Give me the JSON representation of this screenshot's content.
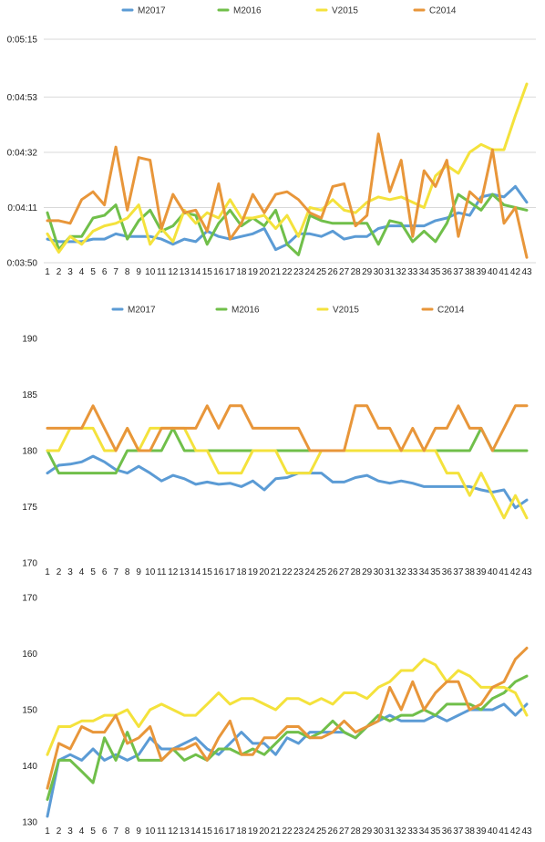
{
  "colors": {
    "M2017": "#5b9bd5",
    "M2016": "#70bf4a",
    "V2015": "#f4e23c",
    "C2014": "#e8963a",
    "grid": "#d9d9d9"
  },
  "chart_data": [
    {
      "type": "line",
      "title": "",
      "xlabel": "",
      "ylabel": "",
      "x": [
        1,
        2,
        3,
        4,
        5,
        6,
        7,
        8,
        9,
        10,
        11,
        12,
        13,
        14,
        15,
        16,
        17,
        18,
        19,
        20,
        21,
        22,
        23,
        24,
        25,
        26,
        27,
        28,
        29,
        30,
        31,
        32,
        33,
        34,
        35,
        36,
        37,
        38,
        39,
        40,
        41,
        42,
        43
      ],
      "y_ticks": [
        "0:03:50",
        "0:04:11",
        "0:04:32",
        "0:04:53",
        "0:05:15"
      ],
      "ylim": [
        "0:03:50",
        "0:05:15"
      ],
      "grid": true,
      "legend": "top",
      "series": [
        {
          "name": "M2017",
          "values": [
            "0:03:59",
            "0:03:58",
            "0:03:58",
            "0:03:58",
            "0:03:59",
            "0:03:59",
            "0:04:01",
            "0:04:00",
            "0:04:00",
            "0:04:00",
            "0:03:59",
            "0:03:57",
            "0:03:59",
            "0:03:58",
            "0:04:02",
            "0:04:00",
            "0:03:59",
            "0:04:00",
            "0:04:01",
            "0:04:03",
            "0:03:55",
            "0:03:57",
            "0:04:01",
            "0:04:01",
            "0:04:00",
            "0:04:02",
            "0:03:59",
            "0:04:00",
            "0:04:00",
            "0:04:03",
            "0:04:04",
            "0:04:04",
            "0:04:04",
            "0:04:04",
            "0:04:06",
            "0:04:07",
            "0:04:09",
            "0:04:08",
            "0:04:15",
            "0:04:16",
            "0:04:15",
            "0:04:19",
            "0:04:13"
          ]
        },
        {
          "name": "M2016",
          "values": [
            "0:04:09",
            "0:03:55",
            "0:04:00",
            "0:04:00",
            "0:04:07",
            "0:04:08",
            "0:04:12",
            "0:03:59",
            "0:04:06",
            "0:04:10",
            "0:04:02",
            "0:04:04",
            "0:04:09",
            "0:04:08",
            "0:03:57",
            "0:04:05",
            "0:04:10",
            "0:04:04",
            "0:04:07",
            "0:04:04",
            "0:04:10",
            "0:03:57",
            "0:03:53",
            "0:04:08",
            "0:04:06",
            "0:04:05",
            "0:04:05",
            "0:04:05",
            "0:04:05",
            "0:03:57",
            "0:04:06",
            "0:04:05",
            "0:03:58",
            "0:04:02",
            "0:03:58",
            "0:04:05",
            "0:04:16",
            "0:04:13",
            "0:04:10",
            "0:04:16",
            "0:04:12",
            "0:04:11",
            "0:04:10"
          ]
        },
        {
          "name": "V2015",
          "values": [
            "0:04:01",
            "0:03:54",
            "0:04:00",
            "0:03:57",
            "0:04:02",
            "0:04:04",
            "0:04:05",
            "0:04:07",
            "0:04:12",
            "0:03:57",
            "0:04:03",
            "0:03:58",
            "0:04:10",
            "0:04:05",
            "0:04:09",
            "0:04:07",
            "0:04:14",
            "0:04:07",
            "0:04:07",
            "0:04:08",
            "0:04:03",
            "0:04:08",
            "0:04:00",
            "0:04:11",
            "0:04:10",
            "0:04:14",
            "0:04:10",
            "0:04:09",
            "0:04:13",
            "0:04:15",
            "0:04:14",
            "0:04:15",
            "0:04:13",
            "0:04:11",
            "0:04:23",
            "0:04:27",
            "0:04:24",
            "0:04:32",
            "0:04:35",
            "0:04:33",
            "0:04:33",
            "0:04:46",
            "0:04:58"
          ]
        },
        {
          "name": "C2014",
          "values": [
            "0:04:06",
            "0:04:06",
            "0:04:05",
            "0:04:14",
            "0:04:17",
            "0:04:12",
            "0:04:34",
            "0:04:10",
            "0:04:30",
            "0:04:29",
            "0:04:03",
            "0:04:16",
            "0:04:09",
            "0:04:10",
            "0:04:02",
            "0:04:20",
            "0:03:59",
            "0:04:05",
            "0:04:16",
            "0:04:09",
            "0:04:16",
            "0:04:17",
            "0:04:14",
            "0:04:09",
            "0:04:07",
            "0:04:19",
            "0:04:20",
            "0:04:04",
            "0:04:08",
            "0:04:39",
            "0:04:17",
            "0:04:29",
            "0:04:00",
            "0:04:25",
            "0:04:19",
            "0:04:29",
            "0:04:00",
            "0:04:17",
            "0:04:13",
            "0:04:33",
            "0:04:05",
            "0:04:11",
            "0:03:52"
          ]
        }
      ]
    },
    {
      "type": "line",
      "title": "",
      "xlabel": "",
      "ylabel": "",
      "x": [
        1,
        2,
        3,
        4,
        5,
        6,
        7,
        8,
        9,
        10,
        11,
        12,
        13,
        14,
        15,
        16,
        17,
        18,
        19,
        20,
        21,
        22,
        23,
        24,
        25,
        26,
        27,
        28,
        29,
        30,
        31,
        32,
        33,
        34,
        35,
        36,
        37,
        38,
        39,
        40,
        41,
        42,
        43
      ],
      "y_ticks": [
        170,
        175,
        180,
        185,
        190
      ],
      "ylim": [
        170,
        190
      ],
      "grid": false,
      "legend": "top",
      "series": [
        {
          "name": "M2017",
          "values": [
            178,
            178.7,
            178.8,
            179,
            179.5,
            179,
            178.3,
            178,
            178.6,
            178,
            177.3,
            177.8,
            177.5,
            177,
            177.2,
            177,
            177.1,
            176.8,
            177.3,
            176.5,
            177.5,
            177.6,
            178,
            178,
            178,
            177.2,
            177.2,
            177.6,
            177.8,
            177.3,
            177.1,
            177.3,
            177.1,
            176.8,
            176.8,
            176.8,
            176.8,
            176.8,
            176.5,
            176.3,
            176.5,
            174.9,
            175.6
          ]
        },
        {
          "name": "M2016",
          "values": [
            180,
            178,
            178,
            178,
            178,
            178,
            178,
            180,
            180,
            180,
            180,
            182,
            180,
            180,
            180,
            180,
            180,
            180,
            180,
            180,
            180,
            180,
            180,
            180,
            180,
            180,
            180,
            180,
            180,
            180,
            180,
            180,
            180,
            180,
            180,
            180,
            180,
            180,
            182,
            180,
            180,
            180,
            180
          ]
        },
        {
          "name": "V2015",
          "values": [
            180,
            180,
            182,
            182,
            182,
            180,
            180,
            182,
            180,
            182,
            182,
            182,
            182,
            180,
            180,
            178,
            178,
            178,
            180,
            180,
            180,
            178,
            178,
            178,
            180,
            180,
            180,
            180,
            180,
            180,
            180,
            180,
            180,
            180,
            180,
            178,
            178,
            176,
            178,
            176,
            174,
            176,
            174
          ]
        },
        {
          "name": "C2014",
          "values": [
            182,
            182,
            182,
            182,
            184,
            182,
            180,
            182,
            180,
            180,
            182,
            182,
            182,
            182,
            184,
            182,
            184,
            184,
            182,
            182,
            182,
            182,
            182,
            180,
            180,
            180,
            180,
            184,
            184,
            182,
            182,
            180,
            182,
            180,
            182,
            182,
            184,
            182,
            182,
            180,
            182,
            184,
            184
          ]
        }
      ]
    },
    {
      "type": "line",
      "title": "",
      "xlabel": "",
      "ylabel": "",
      "x": [
        1,
        2,
        3,
        4,
        5,
        6,
        7,
        8,
        9,
        10,
        11,
        12,
        13,
        14,
        15,
        16,
        17,
        18,
        19,
        20,
        21,
        22,
        23,
        24,
        25,
        26,
        27,
        28,
        29,
        30,
        31,
        32,
        33,
        34,
        35,
        36,
        37,
        38,
        39,
        40,
        41,
        42,
        43
      ],
      "y_ticks": [
        130,
        140,
        150,
        160,
        170
      ],
      "ylim": [
        130,
        170
      ],
      "grid": false,
      "legend": "none",
      "series": [
        {
          "name": "M2017",
          "values": [
            131,
            141,
            142,
            141,
            143,
            141,
            142,
            141,
            142,
            145,
            143,
            143,
            144,
            145,
            143,
            142,
            144,
            146,
            144,
            144,
            142,
            145,
            144,
            146,
            146,
            146,
            146,
            145,
            147,
            148,
            149,
            148,
            148,
            148,
            149,
            148,
            149,
            150,
            150,
            150,
            151,
            149,
            151
          ]
        },
        {
          "name": "M2016",
          "values": [
            134,
            141,
            141,
            139,
            137,
            145,
            141,
            146,
            141,
            141,
            141,
            143,
            141,
            142,
            141,
            143,
            143,
            142,
            143,
            142,
            144,
            146,
            146,
            145,
            146,
            148,
            146,
            145,
            147,
            149,
            148,
            149,
            149,
            150,
            149,
            151,
            151,
            151,
            150,
            152,
            153,
            155,
            156
          ]
        },
        {
          "name": "V2015",
          "values": [
            142,
            147,
            147,
            148,
            148,
            149,
            149,
            150,
            147,
            150,
            151,
            150,
            149,
            149,
            151,
            153,
            151,
            152,
            152,
            151,
            150,
            152,
            152,
            151,
            152,
            151,
            153,
            153,
            152,
            154,
            155,
            157,
            157,
            159,
            158,
            155,
            157,
            156,
            154,
            154,
            154,
            153,
            149
          ]
        },
        {
          "name": "C2014",
          "values": [
            136,
            144,
            143,
            147,
            146,
            146,
            149,
            144,
            145,
            147,
            141,
            143,
            143,
            144,
            141,
            145,
            148,
            142,
            142,
            145,
            145,
            147,
            147,
            145,
            145,
            146,
            148,
            146,
            147,
            148,
            154,
            150,
            155,
            150,
            153,
            155,
            155,
            150,
            151,
            154,
            155,
            159,
            161
          ]
        }
      ]
    }
  ]
}
